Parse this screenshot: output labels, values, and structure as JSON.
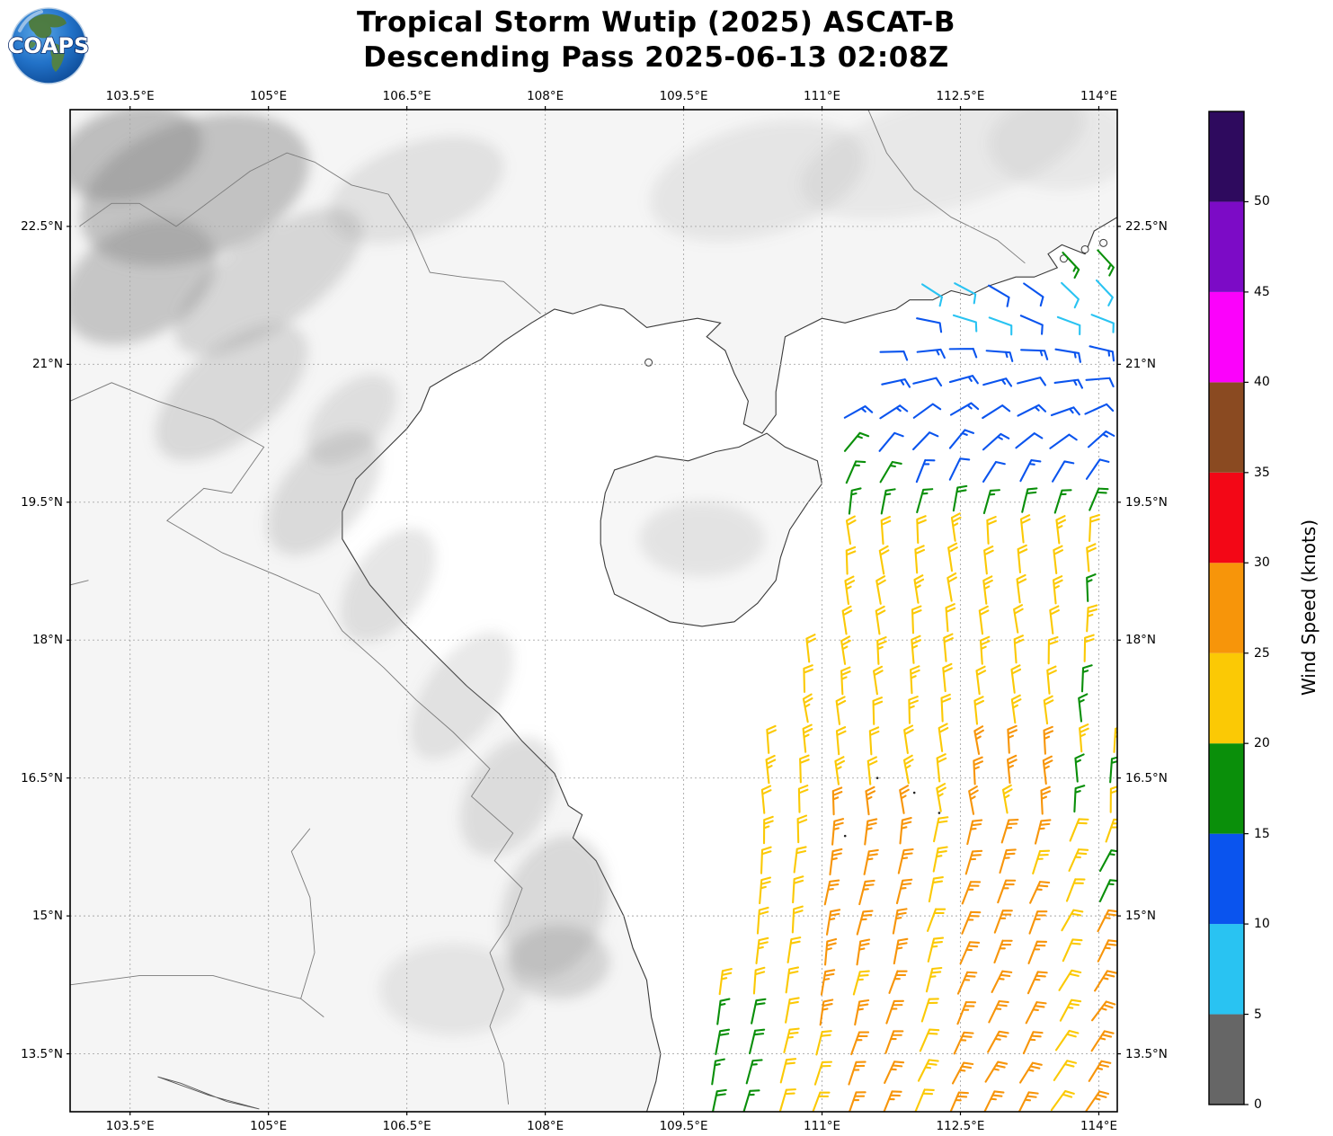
{
  "title": {
    "line1": "Tropical Storm Wutip (2025) ASCAT-B",
    "line2": "Descending Pass 2025-06-13 02:08Z"
  },
  "logo": {
    "text": "COAPS"
  },
  "axes": {
    "lon_tick_labels": [
      "103.5°E",
      "105°E",
      "106.5°E",
      "108°E",
      "109.5°E",
      "111°E",
      "112.5°E",
      "114°E"
    ],
    "lon_tick_values": [
      103.5,
      105,
      106.5,
      108,
      109.5,
      111,
      112.5,
      114
    ],
    "lat_tick_labels": [
      "22.5°N",
      "21°N",
      "19.5°N",
      "18°N",
      "16.5°N",
      "15°N",
      "13.5°N"
    ],
    "lat_tick_values": [
      22.5,
      21,
      19.5,
      18,
      16.5,
      15,
      13.5
    ]
  },
  "colorbar": {
    "label": "Wind Speed (knots)",
    "tick_values": [
      0,
      5,
      10,
      15,
      20,
      25,
      30,
      35,
      40,
      45,
      50
    ],
    "bin_edges": [
      0,
      5,
      10,
      15,
      20,
      25,
      30,
      35,
      40,
      45,
      50,
      55
    ],
    "colors": [
      "#666666",
      "#29c3f2",
      "#0a54ee",
      "#0a8f0a",
      "#fbc905",
      "#f7950a",
      "#f30716",
      "#8a4a21",
      "#fb02fb",
      "#7c0bc6",
      "#2e0a5e"
    ]
  },
  "chart_data": {
    "type": "map_wind_barbs",
    "title": "Tropical Storm Wutip (2025) ASCAT-B",
    "subtitle": "Descending Pass 2025-06-13 02:08Z",
    "storm": "Tropical Storm Wutip (2025)",
    "instrument": "ASCAT-B",
    "pass_type": "Descending",
    "datetime_utc": "2025-06-13 02:08Z",
    "units": "knots",
    "lon_range": [
      102.85,
      114.2
    ],
    "lat_range": [
      12.87,
      23.77
    ],
    "grid_on": true,
    "lon_gridlines": [
      103.5,
      105,
      106.5,
      108,
      109.5,
      111,
      112.5,
      114
    ],
    "lat_gridlines": [
      13.5,
      15,
      16.5,
      18,
      19.5,
      21,
      22.5
    ],
    "colorbar": {
      "label": "Wind Speed (knots)",
      "tick_values": [
        0,
        5,
        10,
        15,
        20,
        25,
        30,
        35,
        40,
        45,
        50
      ],
      "bin_edges": [
        0,
        5,
        10,
        15,
        20,
        25,
        30,
        35,
        40,
        45,
        50,
        55
      ],
      "colors": [
        "#666666",
        "#29c3f2",
        "#0a54ee",
        "#0a8f0a",
        "#fbc905",
        "#f7950a",
        "#f30716",
        "#8a4a21",
        "#fb02fb",
        "#7c0bc6",
        "#2e0a5e"
      ]
    },
    "wind_field": {
      "description": "ASCAT-B descending swath over the South China Sea east of Vietnam/Hainan. Light cyan/blue winds (5-15 kt) around the circulation centered near 112.6E 20.8N off the Guangdong coast, a green ring (15-20 kt), broad yellow 20-25 kt flow through the middle of the swath, strengthening to orange 25-30 kt south of ~16.5N.",
      "center_lon": 112.9,
      "center_lat": 20.55,
      "core_rx": 1.58,
      "core_ry": 1.02,
      "core_knots": 13,
      "ring_knots": 17,
      "mid_knots": 22,
      "south_knots": 26,
      "coastal_knots": 8,
      "corner_knots": 17,
      "grid_dlon": 0.375,
      "grid_dlat": 0.327,
      "col_shear": 0.055,
      "swath_west_edge": [
        [
          12.9,
          109.52
        ],
        [
          15.0,
          110.05
        ],
        [
          17.0,
          110.4
        ],
        [
          18.15,
          110.6
        ],
        [
          19.35,
          110.62
        ],
        [
          20.0,
          111.05
        ],
        [
          20.6,
          111.35
        ],
        [
          21.3,
          111.72
        ],
        [
          21.9,
          112.0
        ],
        [
          22.0,
          113.35
        ],
        [
          22.5,
          113.45
        ]
      ],
      "swath_east_edge_lon": 114.18,
      "hainan_block": [
        108.55,
        111.02,
        18.1,
        20.3
      ]
    },
    "sample_observations": [
      {
        "lon": 112.6,
        "lat": 21.6,
        "knots": 8,
        "color": "cyan"
      },
      {
        "lon": 113.2,
        "lat": 21.5,
        "knots": 8,
        "color": "cyan"
      },
      {
        "lon": 112.4,
        "lat": 20.8,
        "knots": 13,
        "color": "blue"
      },
      {
        "lon": 113.6,
        "lat": 20.3,
        "knots": 13,
        "color": "blue"
      },
      {
        "lon": 111.4,
        "lat": 20.2,
        "knots": 17,
        "color": "green"
      },
      {
        "lon": 113.9,
        "lat": 22.3,
        "knots": 17,
        "color": "green"
      },
      {
        "lon": 112.0,
        "lat": 18.9,
        "knots": 22,
        "color": "yellow"
      },
      {
        "lon": 111.0,
        "lat": 17.0,
        "knots": 22,
        "color": "yellow"
      },
      {
        "lon": 112.5,
        "lat": 15.0,
        "knots": 26,
        "color": "orange"
      },
      {
        "lon": 113.5,
        "lat": 13.8,
        "knots": 26,
        "color": "orange"
      },
      {
        "lon": 109.7,
        "lat": 13.3,
        "knots": 13,
        "color": "blue"
      },
      {
        "lon": 110.1,
        "lat": 13.5,
        "knots": 17,
        "color": "green"
      }
    ]
  },
  "basemap": {
    "mainland": [
      [
        102.85,
        23.77
      ],
      [
        114.2,
        23.77
      ],
      [
        114.2,
        22.6
      ],
      [
        113.95,
        22.45
      ],
      [
        113.85,
        22.2
      ],
      [
        113.6,
        22.3
      ],
      [
        113.45,
        22.2
      ],
      [
        113.55,
        22.05
      ],
      [
        113.3,
        21.95
      ],
      [
        113.1,
        21.95
      ],
      [
        112.8,
        21.85
      ],
      [
        112.6,
        21.75
      ],
      [
        112.4,
        21.8
      ],
      [
        112.2,
        21.7
      ],
      [
        111.95,
        21.7
      ],
      [
        111.8,
        21.6
      ],
      [
        111.6,
        21.55
      ],
      [
        111.25,
        21.45
      ],
      [
        111.0,
        21.5
      ],
      [
        110.8,
        21.4
      ],
      [
        110.6,
        21.3
      ],
      [
        110.55,
        21.0
      ],
      [
        110.5,
        20.7
      ],
      [
        110.5,
        20.45
      ],
      [
        110.35,
        20.25
      ],
      [
        110.15,
        20.35
      ],
      [
        110.2,
        20.6
      ],
      [
        110.05,
        20.9
      ],
      [
        109.95,
        21.15
      ],
      [
        109.75,
        21.3
      ],
      [
        109.9,
        21.45
      ],
      [
        109.65,
        21.5
      ],
      [
        109.35,
        21.45
      ],
      [
        109.1,
        21.4
      ],
      [
        108.85,
        21.6
      ],
      [
        108.6,
        21.65
      ],
      [
        108.3,
        21.55
      ],
      [
        108.1,
        21.6
      ],
      [
        107.85,
        21.45
      ],
      [
        107.55,
        21.25
      ],
      [
        107.3,
        21.05
      ],
      [
        107.0,
        20.9
      ],
      [
        106.75,
        20.75
      ],
      [
        106.65,
        20.5
      ],
      [
        106.5,
        20.3
      ],
      [
        106.2,
        20.0
      ],
      [
        105.95,
        19.75
      ],
      [
        105.8,
        19.4
      ],
      [
        105.8,
        19.1
      ],
      [
        105.95,
        18.85
      ],
      [
        106.1,
        18.6
      ],
      [
        106.45,
        18.2
      ],
      [
        106.8,
        17.85
      ],
      [
        107.15,
        17.5
      ],
      [
        107.5,
        17.2
      ],
      [
        107.75,
        16.9
      ],
      [
        108.1,
        16.55
      ],
      [
        108.25,
        16.2
      ],
      [
        108.4,
        16.1
      ],
      [
        108.3,
        15.85
      ],
      [
        108.55,
        15.6
      ],
      [
        108.7,
        15.3
      ],
      [
        108.85,
        15.0
      ],
      [
        108.95,
        14.65
      ],
      [
        109.1,
        14.3
      ],
      [
        109.15,
        13.9
      ],
      [
        109.25,
        13.5
      ],
      [
        109.2,
        13.2
      ],
      [
        109.1,
        12.87
      ],
      [
        102.85,
        12.87
      ]
    ],
    "hainan": [
      [
        108.6,
        19.3
      ],
      [
        108.65,
        19.6
      ],
      [
        108.75,
        19.85
      ],
      [
        109.2,
        20.0
      ],
      [
        109.55,
        19.95
      ],
      [
        109.85,
        20.05
      ],
      [
        110.1,
        20.1
      ],
      [
        110.4,
        20.25
      ],
      [
        110.6,
        20.1
      ],
      [
        110.95,
        19.95
      ],
      [
        111.0,
        19.7
      ],
      [
        110.85,
        19.5
      ],
      [
        110.65,
        19.2
      ],
      [
        110.55,
        18.9
      ],
      [
        110.5,
        18.65
      ],
      [
        110.3,
        18.4
      ],
      [
        110.05,
        18.2
      ],
      [
        109.7,
        18.15
      ],
      [
        109.35,
        18.2
      ],
      [
        109.05,
        18.35
      ],
      [
        108.75,
        18.5
      ],
      [
        108.65,
        18.8
      ],
      [
        108.6,
        19.05
      ]
    ],
    "islets": [
      [
        109.12,
        21.02
      ],
      [
        113.85,
        22.25
      ],
      [
        114.05,
        22.32
      ],
      [
        113.62,
        22.15
      ]
    ],
    "reef_dots": [
      [
        112.27,
        16.12
      ],
      [
        111.25,
        15.87
      ],
      [
        111.6,
        16.5
      ],
      [
        112.0,
        16.34
      ]
    ],
    "lake": [
      [
        103.8,
        13.25
      ],
      [
        104.35,
        13.05
      ],
      [
        104.9,
        12.9
      ],
      [
        104.55,
        12.98
      ],
      [
        104.05,
        13.18
      ]
    ],
    "borders": [
      [
        [
          107.95,
          21.55
        ],
        [
          107.55,
          21.9
        ],
        [
          107.1,
          21.95
        ],
        [
          106.75,
          22.0
        ],
        [
          106.55,
          22.45
        ],
        [
          106.3,
          22.85
        ],
        [
          105.9,
          22.95
        ],
        [
          105.5,
          23.2
        ],
        [
          105.2,
          23.3
        ],
        [
          104.8,
          23.1
        ],
        [
          104.4,
          22.8
        ],
        [
          104.0,
          22.5
        ],
        [
          103.6,
          22.75
        ],
        [
          103.3,
          22.75
        ],
        [
          102.95,
          22.5
        ]
      ],
      [
        [
          102.85,
          20.6
        ],
        [
          103.3,
          20.8
        ],
        [
          103.8,
          20.6
        ],
        [
          104.4,
          20.4
        ],
        [
          104.95,
          20.1
        ],
        [
          104.6,
          19.6
        ],
        [
          104.3,
          19.65
        ],
        [
          103.9,
          19.3
        ],
        [
          104.5,
          18.95
        ],
        [
          105.1,
          18.7
        ],
        [
          105.55,
          18.5
        ],
        [
          105.8,
          18.1
        ],
        [
          106.25,
          17.7
        ],
        [
          106.6,
          17.35
        ],
        [
          107.0,
          17.0
        ],
        [
          107.4,
          16.6
        ],
        [
          107.2,
          16.3
        ],
        [
          107.65,
          15.9
        ],
        [
          107.45,
          15.6
        ],
        [
          107.75,
          15.3
        ],
        [
          107.6,
          14.9
        ],
        [
          107.4,
          14.6
        ],
        [
          107.55,
          14.2
        ],
        [
          107.4,
          13.8
        ],
        [
          107.55,
          13.4
        ],
        [
          107.6,
          12.95
        ]
      ],
      [
        [
          102.85,
          14.25
        ],
        [
          103.6,
          14.35
        ],
        [
          104.4,
          14.35
        ],
        [
          104.95,
          14.2
        ],
        [
          105.35,
          14.1
        ],
        [
          105.6,
          13.9
        ]
      ],
      [
        [
          105.35,
          14.1
        ],
        [
          105.5,
          14.6
        ],
        [
          105.45,
          15.2
        ],
        [
          105.25,
          15.7
        ],
        [
          105.45,
          15.95
        ]
      ],
      [
        [
          111.5,
          23.77
        ],
        [
          111.7,
          23.3
        ],
        [
          112.0,
          22.9
        ],
        [
          112.4,
          22.6
        ],
        [
          112.9,
          22.35
        ],
        [
          113.2,
          22.1
        ]
      ],
      [
        [
          102.85,
          18.6
        ],
        [
          103.05,
          18.65
        ]
      ]
    ],
    "terrain_blobs": [
      [
        104.2,
        22.9,
        1.3,
        0.75,
        -20,
        0.5
      ],
      [
        103.5,
        23.3,
        0.8,
        0.5,
        -15,
        0.55
      ],
      [
        103.6,
        21.9,
        0.9,
        0.6,
        -30,
        0.45
      ],
      [
        105.0,
        21.9,
        1.2,
        0.5,
        -35,
        0.3
      ],
      [
        104.6,
        20.7,
        1.0,
        0.5,
        -40,
        0.28
      ],
      [
        105.6,
        19.6,
        0.8,
        0.45,
        -50,
        0.26
      ],
      [
        106.3,
        18.6,
        0.7,
        0.4,
        -55,
        0.22
      ],
      [
        107.1,
        17.4,
        0.8,
        0.4,
        -55,
        0.2
      ],
      [
        107.6,
        16.3,
        0.7,
        0.45,
        -60,
        0.24
      ],
      [
        108.1,
        15.1,
        0.8,
        0.55,
        -70,
        0.28
      ],
      [
        108.15,
        14.5,
        0.55,
        0.4,
        0,
        0.33
      ],
      [
        107.0,
        14.2,
        0.8,
        0.5,
        0,
        0.16
      ],
      [
        109.7,
        19.1,
        0.75,
        0.45,
        -10,
        0.22
      ],
      [
        112.3,
        23.3,
        1.6,
        0.6,
        -15,
        0.12
      ],
      [
        110.3,
        23.0,
        1.2,
        0.6,
        -15,
        0.15
      ],
      [
        113.6,
        23.4,
        0.8,
        0.5,
        0,
        0.12
      ],
      [
        106.6,
        22.9,
        1.0,
        0.5,
        -20,
        0.2
      ],
      [
        105.9,
        20.4,
        0.6,
        0.35,
        -45,
        0.22
      ]
    ]
  }
}
